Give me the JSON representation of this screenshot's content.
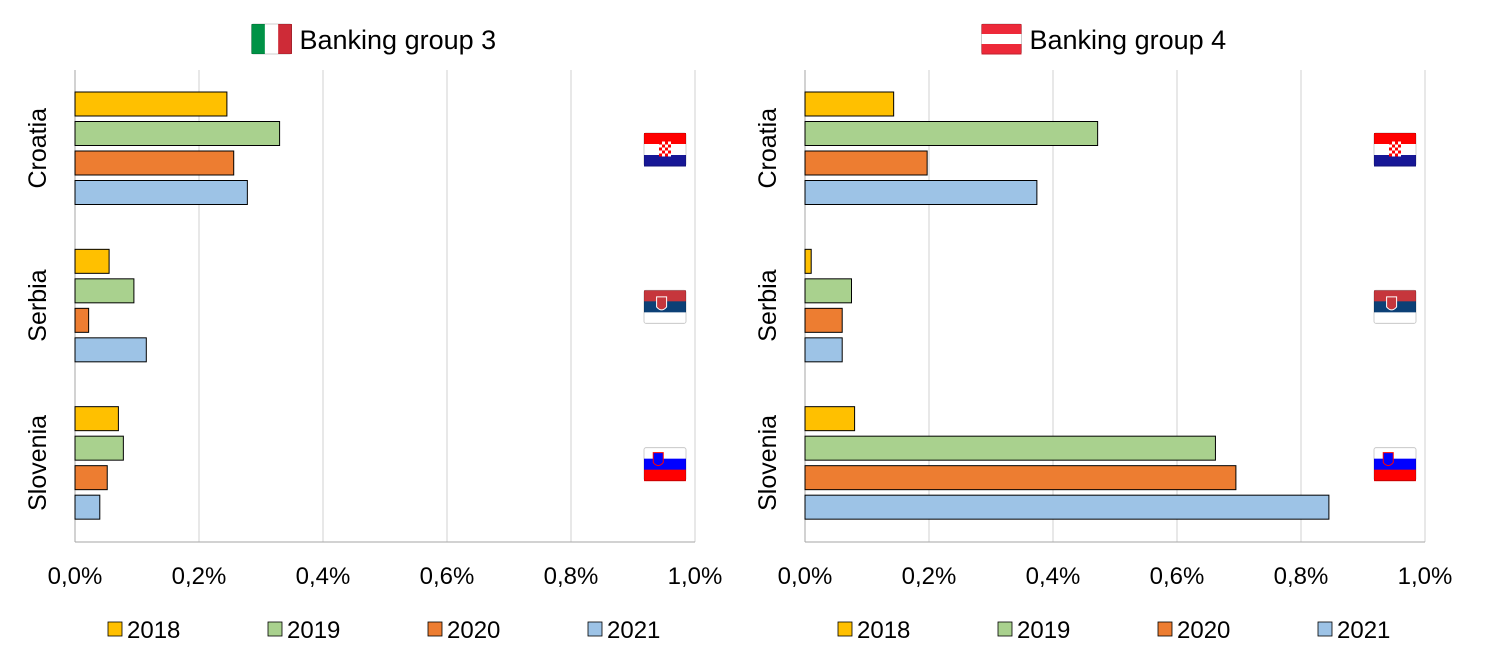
{
  "chart_data": [
    {
      "type": "bar",
      "orientation": "horizontal",
      "title": "Banking group 3",
      "title_flag": "italy",
      "categories": [
        "Croatia",
        "Serbia",
        "Slovenia"
      ],
      "category_flags": [
        "croatia",
        "serbia",
        "slovenia"
      ],
      "xlim": [
        0,
        1.0
      ],
      "xticks": [
        0,
        0.2,
        0.4,
        0.6,
        0.8,
        1.0
      ],
      "xtick_labels": [
        "0,0%",
        "0,2%",
        "0,4%",
        "0,6%",
        "0,8%",
        "1,0%"
      ],
      "grid": true,
      "legend": "bottom",
      "series": [
        {
          "name": "2018",
          "color": "#FFC000",
          "values": [
            0.245,
            0.055,
            0.07
          ]
        },
        {
          "name": "2019",
          "color": "#A9D18E",
          "values": [
            0.33,
            0.095,
            0.078
          ]
        },
        {
          "name": "2020",
          "color": "#ED7D31",
          "values": [
            0.256,
            0.022,
            0.052
          ]
        },
        {
          "name": "2021",
          "color": "#9DC3E6",
          "values": [
            0.278,
            0.115,
            0.04
          ]
        }
      ]
    },
    {
      "type": "bar",
      "orientation": "horizontal",
      "title": "Banking group 4",
      "title_flag": "austria",
      "categories": [
        "Croatia",
        "Serbia",
        "Slovenia"
      ],
      "category_flags": [
        "croatia",
        "serbia",
        "slovenia"
      ],
      "xlim": [
        0,
        1.0
      ],
      "xticks": [
        0,
        0.2,
        0.4,
        0.6,
        0.8,
        1.0
      ],
      "xtick_labels": [
        "0,0%",
        "0,2%",
        "0,4%",
        "0,6%",
        "0,8%",
        "1,0%"
      ],
      "grid": true,
      "legend": "bottom",
      "series": [
        {
          "name": "2018",
          "color": "#FFC000",
          "values": [
            0.143,
            0.01,
            0.08
          ]
        },
        {
          "name": "2019",
          "color": "#A9D18E",
          "values": [
            0.472,
            0.075,
            0.662
          ]
        },
        {
          "name": "2020",
          "color": "#ED7D31",
          "values": [
            0.197,
            0.06,
            0.695
          ]
        },
        {
          "name": "2021",
          "color": "#9DC3E6",
          "values": [
            0.374,
            0.06,
            0.845
          ]
        }
      ]
    }
  ]
}
